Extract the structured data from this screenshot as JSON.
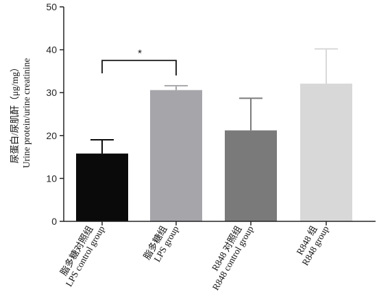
{
  "chart_data": {
    "type": "bar",
    "categories": [
      [
        "脂多糖对照组",
        "LPS control group"
      ],
      [
        "脂多糖组",
        "LPS group"
      ],
      [
        "R848 对照组",
        "R848 control group"
      ],
      [
        "R848 组",
        "R848 group"
      ]
    ],
    "values": [
      15.8,
      30.6,
      21.2,
      32.1
    ],
    "errors": [
      3.2,
      1.0,
      7.5,
      8.1
    ],
    "colors": [
      "#0a0a0a",
      "#a6a5aa",
      "#7a7a7a",
      "#d8d8d8"
    ],
    "ylabel_cn": "尿蛋白/尿肌酐（μg/mg）",
    "ylabel_en": "Urine protein/urine creatinine",
    "ylim": [
      0,
      50
    ],
    "yticks": [
      0,
      10,
      20,
      30,
      40,
      50
    ],
    "significance": {
      "from": 0,
      "to": 1,
      "label": "*"
    }
  }
}
